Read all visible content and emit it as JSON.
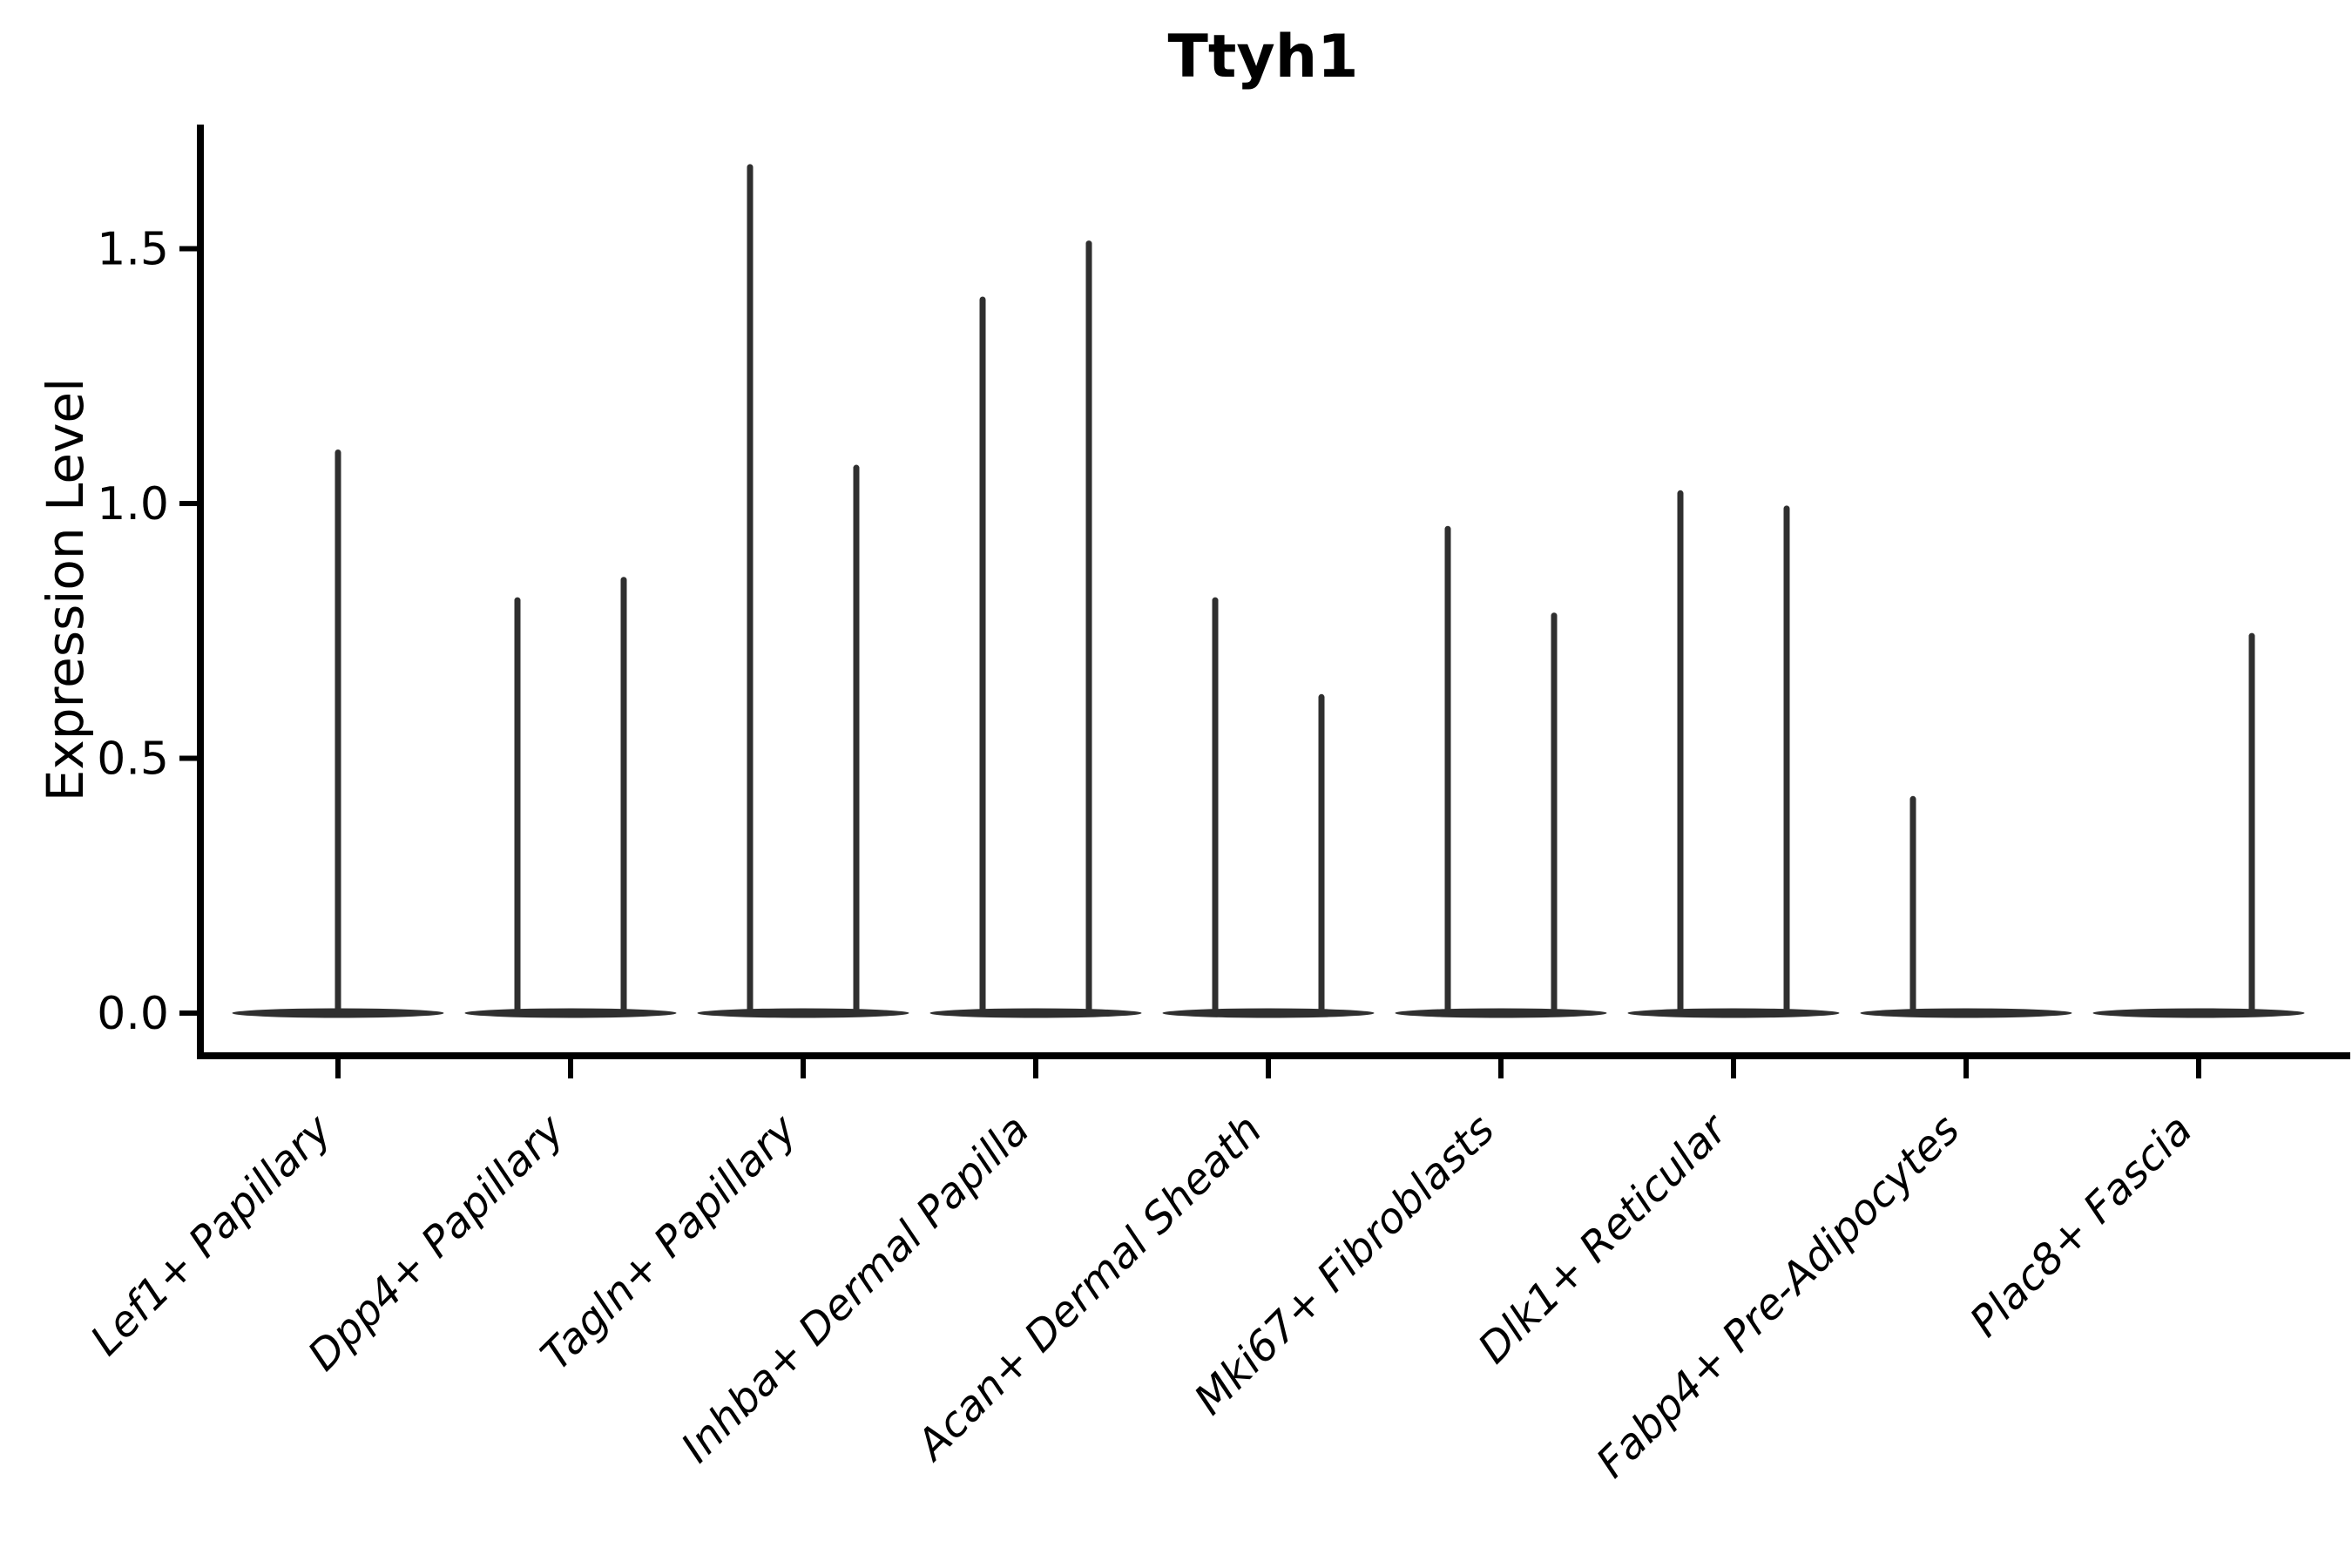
{
  "figure": {
    "background": "#ffffff"
  },
  "chart_data": {
    "type": "violin",
    "title": "Ttyh1",
    "xlabel": "",
    "ylabel": "Expression Level",
    "categories": [
      "Lef1+ Papillary",
      "Dpp4+ Papillary",
      "Tagln+ Papillary",
      "Inhba+ Dermal Papilla",
      "Acan+ Dermal Sheath",
      "Mki67+ Fibroblasts",
      "Dlk1+ Reticular",
      "Fabp4+ Pre-Adipocytes",
      "Plac8+ Fascia"
    ],
    "violins": [
      {
        "category": "Lef1+ Papillary",
        "spikes": [
          {
            "position": "center",
            "max": 1.1
          }
        ]
      },
      {
        "category": "Dpp4+ Papillary",
        "spikes": [
          {
            "position": "left",
            "max": 0.81
          },
          {
            "position": "right",
            "max": 0.85
          }
        ]
      },
      {
        "category": "Tagln+ Papillary",
        "spikes": [
          {
            "position": "left",
            "max": 1.66
          },
          {
            "position": "right",
            "max": 1.07
          }
        ]
      },
      {
        "category": "Inhba+ Dermal Papilla",
        "spikes": [
          {
            "position": "left",
            "max": 1.4
          },
          {
            "position": "right",
            "max": 1.51
          }
        ]
      },
      {
        "category": "Acan+ Dermal Sheath",
        "spikes": [
          {
            "position": "left",
            "max": 0.81
          },
          {
            "position": "right",
            "max": 0.62
          }
        ]
      },
      {
        "category": "Mki67+ Fibroblasts",
        "spikes": [
          {
            "position": "left",
            "max": 0.95
          },
          {
            "position": "right",
            "max": 0.78
          }
        ]
      },
      {
        "category": "Dlk1+ Reticular",
        "spikes": [
          {
            "position": "left",
            "max": 1.02
          },
          {
            "position": "right",
            "max": 0.99
          }
        ]
      },
      {
        "category": "Fabp4+ Pre-Adipocytes",
        "spikes": [
          {
            "position": "left",
            "max": 0.42
          }
        ]
      },
      {
        "category": "Plac8+ Fascia",
        "spikes": [
          {
            "position": "right",
            "max": 0.74
          }
        ]
      }
    ],
    "baseline_value": 0.0,
    "yticks": [
      0.0,
      0.5,
      1.0,
      1.5
    ],
    "ytick_labels": [
      "0.0",
      "0.5",
      "1.0",
      "1.5"
    ],
    "ylim": [
      -0.05,
      1.74
    ],
    "grid": false,
    "legend": "none",
    "violin_color": "#2f2f2f",
    "axis_color": "#000000"
  }
}
